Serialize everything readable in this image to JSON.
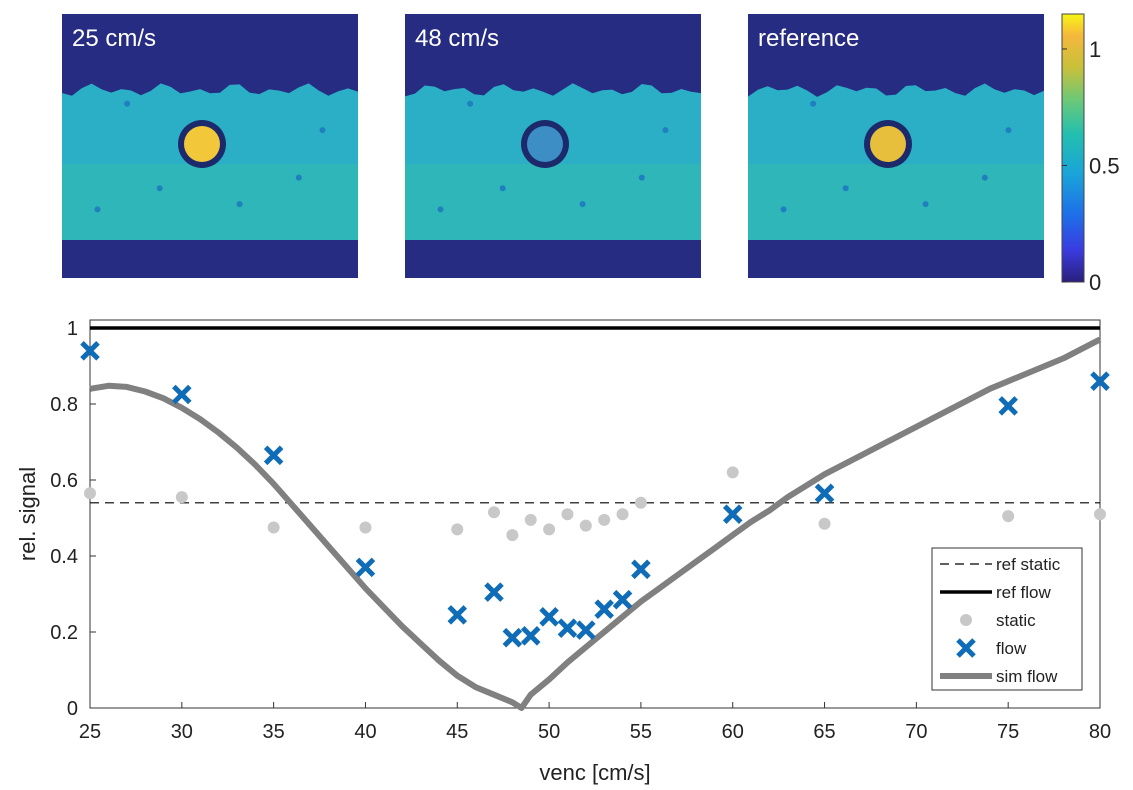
{
  "panels": [
    {
      "label": "25 cm/s",
      "ring": "dark",
      "core": "#f2c83a"
    },
    {
      "label": "48 cm/s",
      "ring": "dark",
      "core": "#3c8ec4"
    },
    {
      "label": "reference",
      "ring": "dark",
      "core": "#e8bf3c"
    }
  ],
  "colorbar": {
    "ticks": [
      {
        "value": 1,
        "label": "1"
      },
      {
        "value": 0.5,
        "label": "0.5"
      },
      {
        "value": 0,
        "label": "0"
      }
    ],
    "min": 0,
    "max": 1.15
  },
  "colors": {
    "flow": "#0f6cb6",
    "static": "#c8c8c8",
    "sim": "#808080",
    "ref": "#000000",
    "phantom_bg": "#262c82",
    "phantom_gel": "#2bafc6"
  },
  "chart_data": {
    "type": "scatter",
    "title": "",
    "xlabel": "venc [cm/s]",
    "ylabel": "rel. signal",
    "xlim": [
      25,
      80
    ],
    "ylim": [
      0,
      1
    ],
    "xticks": [
      25,
      30,
      35,
      40,
      45,
      50,
      55,
      60,
      65,
      70,
      75,
      80
    ],
    "yticks": [
      0,
      0.2,
      0.4,
      0.6,
      0.8,
      1
    ],
    "legend_position": "bottom-right",
    "legend": [
      "ref static",
      "ref flow",
      "static",
      "flow",
      "sim flow"
    ],
    "ref_static": 0.54,
    "ref_flow": 1.0,
    "static": {
      "x": [
        25,
        30,
        35,
        40,
        45,
        47,
        48,
        49,
        50,
        51,
        52,
        53,
        54,
        55,
        60,
        65,
        75,
        80
      ],
      "y": [
        0.565,
        0.555,
        0.475,
        0.475,
        0.47,
        0.515,
        0.455,
        0.495,
        0.47,
        0.51,
        0.48,
        0.495,
        0.51,
        0.54,
        0.62,
        0.485,
        0.505,
        0.51
      ]
    },
    "flow": {
      "x": [
        25,
        30,
        35,
        40,
        45,
        47,
        48,
        49,
        50,
        51,
        52,
        53,
        54,
        55,
        60,
        65,
        75,
        80
      ],
      "y": [
        0.94,
        0.825,
        0.665,
        0.37,
        0.245,
        0.305,
        0.185,
        0.19,
        0.24,
        0.21,
        0.205,
        0.26,
        0.285,
        0.365,
        0.51,
        0.565,
        0.795,
        0.86
      ]
    },
    "sim_flow": {
      "x": [
        25,
        26,
        27,
        28,
        29,
        30,
        31,
        32,
        33,
        34,
        35,
        36,
        37,
        38,
        39,
        40,
        41,
        42,
        43,
        44,
        45,
        46,
        47,
        48,
        48.5,
        49,
        50,
        51,
        52,
        53,
        54,
        55,
        56,
        57,
        58,
        59,
        60,
        61,
        62,
        63,
        64,
        65,
        66,
        67,
        68,
        69,
        70,
        71,
        72,
        73,
        74,
        75,
        76,
        77,
        78,
        79,
        80
      ],
      "y": [
        0.84,
        0.848,
        0.845,
        0.833,
        0.815,
        0.79,
        0.76,
        0.725,
        0.685,
        0.64,
        0.59,
        0.535,
        0.48,
        0.425,
        0.37,
        0.315,
        0.265,
        0.215,
        0.17,
        0.125,
        0.085,
        0.055,
        0.035,
        0.015,
        0.0,
        0.035,
        0.075,
        0.12,
        0.16,
        0.2,
        0.24,
        0.28,
        0.315,
        0.35,
        0.385,
        0.42,
        0.455,
        0.49,
        0.52,
        0.555,
        0.585,
        0.615,
        0.64,
        0.665,
        0.69,
        0.715,
        0.74,
        0.765,
        0.79,
        0.815,
        0.84,
        0.86,
        0.88,
        0.9,
        0.92,
        0.945,
        0.97
      ]
    }
  }
}
